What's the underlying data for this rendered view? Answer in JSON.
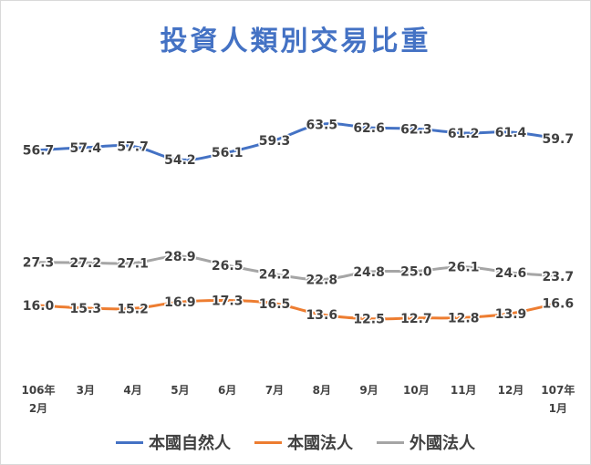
{
  "chart_data": {
    "type": "line",
    "title": "投資人類別交易比重",
    "categories": [
      "106年 2月",
      "3月",
      "4月",
      "5月",
      "6月",
      "7月",
      "8月",
      "9月",
      "10月",
      "11月",
      "12月",
      "107年 1月"
    ],
    "series": [
      {
        "name": "本國自然人",
        "color": "#4472c4",
        "values": [
          56.7,
          57.4,
          57.7,
          54.2,
          56.1,
          59.3,
          63.5,
          62.6,
          62.3,
          61.2,
          61.4,
          59.7
        ]
      },
      {
        "name": "本國法人",
        "color": "#ed7d31",
        "values": [
          16.0,
          15.3,
          15.2,
          16.9,
          17.3,
          16.5,
          13.6,
          12.5,
          12.7,
          12.8,
          13.9,
          16.6
        ]
      },
      {
        "name": "外國法人",
        "color": "#a5a5a5",
        "values": [
          27.3,
          27.2,
          27.1,
          28.9,
          26.5,
          24.2,
          22.8,
          24.8,
          25.0,
          26.1,
          24.6,
          23.7
        ]
      }
    ],
    "grid": false,
    "legend": "bottom"
  }
}
